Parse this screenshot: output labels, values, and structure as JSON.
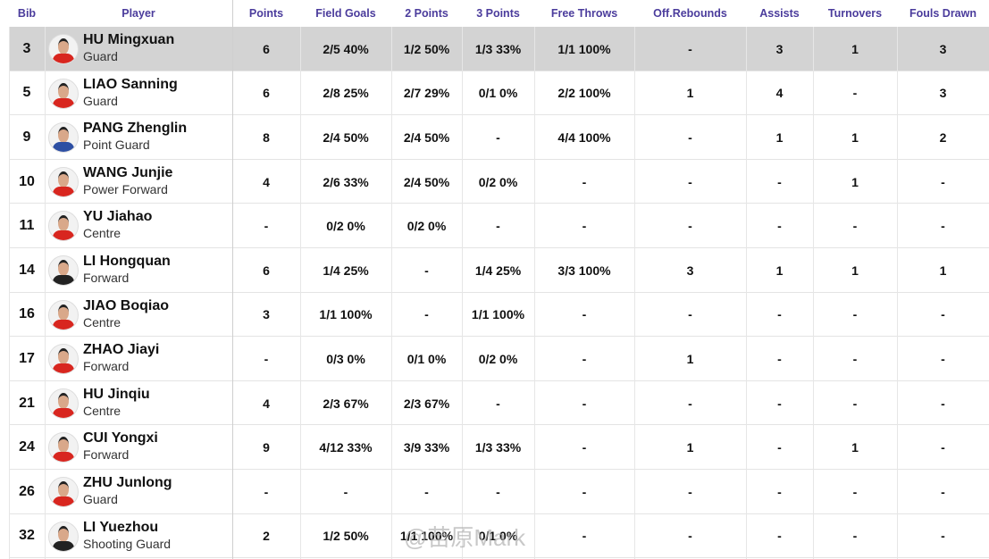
{
  "header": {
    "columns": [
      "Bib",
      "Player",
      "Points",
      "Field Goals",
      "2 Points",
      "3 Points",
      "Free Throws",
      "Off.Rebounds",
      "Assists",
      "Turnovers",
      "Fouls Drawn"
    ]
  },
  "rows": [
    {
      "bib": "3",
      "name": "HU Mingxuan",
      "position": "Guard",
      "stats": [
        "6",
        "2/5 40%",
        "1/2 50%",
        "1/3 33%",
        "1/1 100%",
        "-",
        "3",
        "1",
        "3"
      ]
    },
    {
      "bib": "5",
      "name": "LIAO Sanning",
      "position": "Guard",
      "stats": [
        "6",
        "2/8 25%",
        "2/7 29%",
        "0/1 0%",
        "2/2 100%",
        "1",
        "4",
        "-",
        "3"
      ]
    },
    {
      "bib": "9",
      "name": "PANG Zhenglin",
      "position": "Point Guard",
      "stats": [
        "8",
        "2/4 50%",
        "2/4 50%",
        "-",
        "4/4 100%",
        "-",
        "1",
        "1",
        "2"
      ]
    },
    {
      "bib": "10",
      "name": "WANG Junjie",
      "position": "Power Forward",
      "stats": [
        "4",
        "2/6 33%",
        "2/4 50%",
        "0/2 0%",
        "-",
        "-",
        "-",
        "1",
        "-"
      ]
    },
    {
      "bib": "11",
      "name": "YU Jiahao",
      "position": "Centre",
      "stats": [
        "-",
        "0/2 0%",
        "0/2 0%",
        "-",
        "-",
        "-",
        "-",
        "-",
        "-"
      ]
    },
    {
      "bib": "14",
      "name": "LI Hongquan",
      "position": "Forward",
      "stats": [
        "6",
        "1/4 25%",
        "-",
        "1/4 25%",
        "3/3 100%",
        "3",
        "1",
        "1",
        "1"
      ]
    },
    {
      "bib": "16",
      "name": "JIAO Boqiao",
      "position": "Centre",
      "stats": [
        "3",
        "1/1 100%",
        "-",
        "1/1 100%",
        "-",
        "-",
        "-",
        "-",
        "-"
      ]
    },
    {
      "bib": "17",
      "name": "ZHAO Jiayi",
      "position": "Forward",
      "stats": [
        "-",
        "0/3 0%",
        "0/1 0%",
        "0/2 0%",
        "-",
        "1",
        "-",
        "-",
        "-"
      ]
    },
    {
      "bib": "21",
      "name": "HU Jinqiu",
      "position": "Centre",
      "stats": [
        "4",
        "2/3 67%",
        "2/3 67%",
        "-",
        "-",
        "-",
        "-",
        "-",
        "-"
      ]
    },
    {
      "bib": "24",
      "name": "CUI Yongxi",
      "position": "Forward",
      "stats": [
        "9",
        "4/12 33%",
        "3/9 33%",
        "1/3 33%",
        "-",
        "1",
        "-",
        "1",
        "-"
      ]
    },
    {
      "bib": "26",
      "name": "ZHU Junlong",
      "position": "Guard",
      "stats": [
        "-",
        "-",
        "-",
        "-",
        "-",
        "-",
        "-",
        "-",
        "-"
      ]
    },
    {
      "bib": "32",
      "name": "LI Yuezhou",
      "position": "Shooting Guard",
      "stats": [
        "2",
        "1/2 50%",
        "1/1 100%",
        "0/1 0%",
        "-",
        "-",
        "-",
        "-",
        "-"
      ]
    }
  ],
  "watermark": "@苗原Mark"
}
